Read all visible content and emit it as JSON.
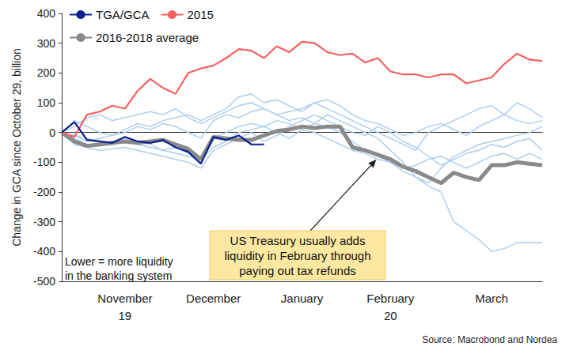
{
  "chart_data": {
    "type": "line",
    "y_label": "Change in GCA since October 29, billion",
    "categories": [
      null,
      null,
      null,
      null,
      null,
      "November\n19",
      null,
      null,
      null,
      null,
      null,
      null,
      "December",
      null,
      null,
      null,
      null,
      null,
      null,
      "January",
      null,
      null,
      null,
      null,
      null,
      null,
      "February\n20",
      null,
      null,
      null,
      null,
      null,
      null,
      null,
      "March",
      null,
      null,
      null,
      null
    ],
    "ylim": [
      -500,
      400
    ],
    "yticks": [
      -500,
      -400,
      -300,
      -200,
      -100,
      0,
      100,
      200,
      300,
      400
    ],
    "grid": false,
    "legend": "upper left",
    "series": [
      {
        "name": "TGA/GCA",
        "color": "#0b1f8f",
        "line_style": "solid",
        "values": [
          0,
          35,
          -25,
          -30,
          -35,
          -15,
          -30,
          -35,
          -25,
          -50,
          -65,
          -105,
          -15,
          -25,
          -10,
          -40,
          -40,
          null,
          null,
          null,
          null,
          null,
          null,
          null,
          null,
          null,
          null,
          null,
          null,
          null,
          null,
          null,
          null,
          null,
          null,
          null,
          null,
          null,
          null
        ]
      },
      {
        "name": "2015",
        "color": "#f4615f",
        "line_style": "solid",
        "values": [
          0,
          -15,
          60,
          70,
          90,
          80,
          140,
          180,
          150,
          130,
          200,
          215,
          225,
          250,
          280,
          275,
          250,
          290,
          270,
          305,
          300,
          270,
          260,
          265,
          235,
          250,
          205,
          195,
          195,
          185,
          195,
          195,
          165,
          175,
          185,
          230,
          265,
          245,
          240
        ]
      },
      {
        "name": "2016-2018 average",
        "color": "#8a8a8a",
        "line_style": "thick",
        "values": [
          0,
          -30,
          -45,
          -40,
          -35,
          -30,
          -35,
          -30,
          -25,
          -40,
          -55,
          -90,
          -15,
          -20,
          -25,
          -25,
          -10,
          5,
          10,
          20,
          15,
          20,
          20,
          -50,
          -60,
          -75,
          -90,
          -115,
          -130,
          -150,
          -170,
          -135,
          -150,
          -160,
          -110,
          -110,
          -100,
          -105,
          -110
        ]
      },
      {
        "color": "#a9cbed",
        "line_style": "thin",
        "values": [
          0,
          -20,
          -40,
          -45,
          -40,
          -30,
          -40,
          -50,
          -60,
          -50,
          -70,
          -100,
          -20,
          0,
          20,
          30,
          20,
          40,
          30,
          10,
          0,
          -20,
          -40,
          -60,
          -70,
          -90,
          -100,
          -130,
          -150,
          -180,
          -200,
          -300,
          -330,
          -360,
          -400,
          -390,
          -370,
          -370,
          -370
        ]
      },
      {
        "color": "#a9cbed",
        "line_style": "thin",
        "values": [
          0,
          40,
          20,
          0,
          -10,
          10,
          30,
          20,
          40,
          50,
          60,
          40,
          60,
          80,
          120,
          130,
          100,
          110,
          90,
          70,
          100,
          80,
          60,
          40,
          20,
          0,
          -20,
          -40,
          -60,
          0,
          20,
          40,
          60,
          80,
          90,
          60,
          100,
          80,
          50
        ]
      },
      {
        "color": "#a9cbed",
        "line_style": "thin",
        "values": [
          0,
          -10,
          -30,
          -20,
          -10,
          0,
          20,
          10,
          30,
          20,
          0,
          -20,
          40,
          60,
          50,
          70,
          80,
          60,
          40,
          50,
          30,
          60,
          40,
          20,
          0,
          -20,
          -60,
          -100,
          -150,
          -170,
          -120,
          -80,
          -60,
          -40,
          -30,
          -20,
          -10,
          0,
          20
        ]
      },
      {
        "color": "#a9cbed",
        "line_style": "thin",
        "values": [
          0,
          -40,
          -50,
          -60,
          -55,
          -50,
          -60,
          -70,
          -80,
          -90,
          -100,
          -120,
          -60,
          -40,
          -20,
          0,
          -30,
          -10,
          20,
          40,
          60,
          40,
          20,
          0,
          -10,
          20,
          0,
          -30,
          -50,
          -80,
          -110,
          -90,
          -70,
          -60,
          -40,
          -50,
          -30,
          -20,
          -60
        ]
      },
      {
        "color": "#a9cbed",
        "line_style": "thin",
        "values": [
          0,
          20,
          50,
          60,
          40,
          50,
          60,
          70,
          60,
          80,
          50,
          30,
          50,
          70,
          90,
          100,
          80,
          60,
          70,
          80,
          100,
          110,
          90,
          60,
          40,
          30,
          10,
          -10,
          0,
          20,
          30,
          10,
          -10,
          20,
          40,
          60,
          40,
          30,
          40
        ]
      },
      {
        "color": "#a9cbed",
        "line_style": "thin",
        "values": [
          0,
          -10,
          -20,
          -30,
          -40,
          -20,
          -30,
          -40,
          -60,
          -70,
          -80,
          -90,
          -50,
          -30,
          0,
          10,
          20,
          0,
          -20,
          10,
          30,
          20,
          0,
          -30,
          -60,
          -80,
          -100,
          -120,
          -110,
          -90,
          -80,
          -100,
          -120,
          -100,
          -80,
          -70,
          -90,
          -70,
          -90
        ]
      }
    ],
    "annotations": [
      {
        "text": "US Treasury usually adds\nliquidity in February through\npaying out tax refunds"
      },
      {
        "text": "Lower = more liquidity\nin the banking system"
      }
    ],
    "source": "Source: Macrobond and Nordea"
  }
}
